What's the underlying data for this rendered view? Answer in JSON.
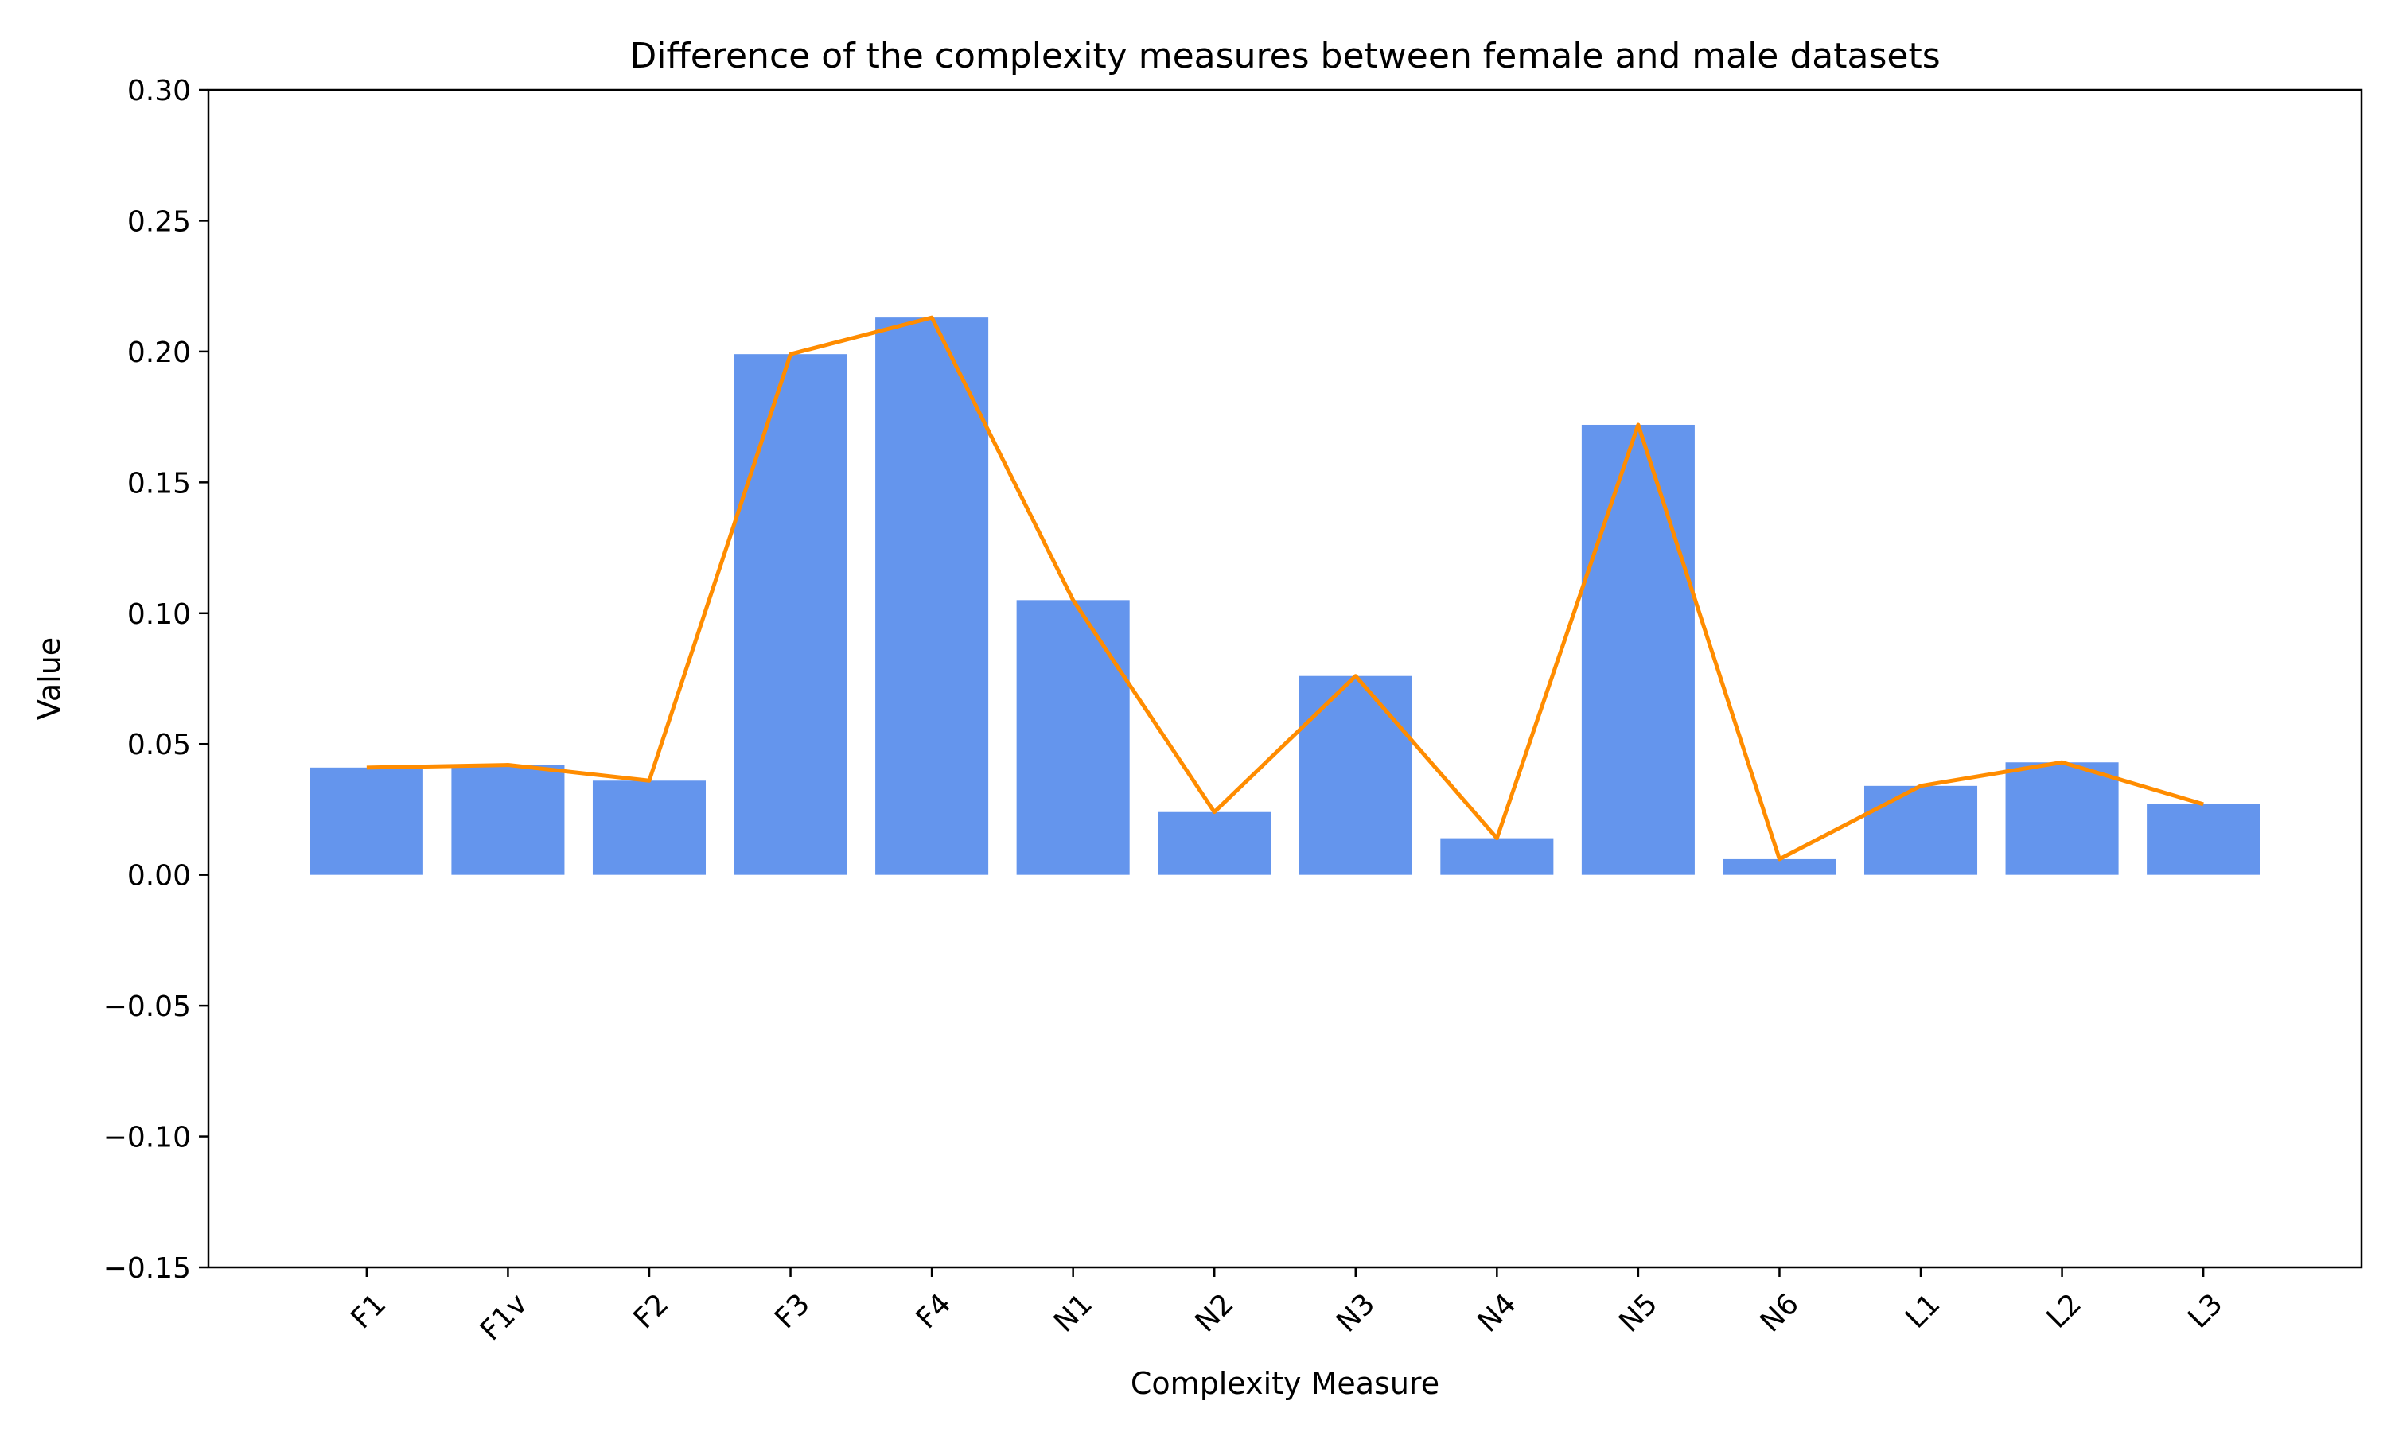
{
  "chart_data": {
    "type": "bar",
    "title": "Difference of the complexity measures between female and male datasets",
    "xlabel": "Complexity Measure",
    "ylabel": "Value",
    "ylim": [
      -0.15,
      0.3
    ],
    "yticks": [
      -0.15,
      -0.1,
      -0.05,
      0.0,
      0.05,
      0.1,
      0.15,
      0.2,
      0.25,
      0.3
    ],
    "ytick_labels": [
      "−0.15",
      "−0.10",
      "−0.05",
      "0.00",
      "0.05",
      "0.10",
      "0.15",
      "0.20",
      "0.25",
      "0.30"
    ],
    "categories": [
      "F1",
      "F1v",
      "F2",
      "F3",
      "F4",
      "N1",
      "N2",
      "N3",
      "N4",
      "N5",
      "N6",
      "L1",
      "L2",
      "L3"
    ],
    "values": [
      0.041,
      0.042,
      0.036,
      0.199,
      0.213,
      0.105,
      0.024,
      0.076,
      0.014,
      0.172,
      0.006,
      0.034,
      0.043,
      0.027
    ],
    "line_values": [
      0.041,
      0.042,
      0.036,
      0.199,
      0.213,
      0.105,
      0.024,
      0.076,
      0.014,
      0.172,
      0.006,
      0.034,
      0.043,
      0.027
    ],
    "grid": false,
    "colors": {
      "bar": "#6495ED",
      "line": "#FF8C00",
      "axis": "#000000"
    }
  }
}
